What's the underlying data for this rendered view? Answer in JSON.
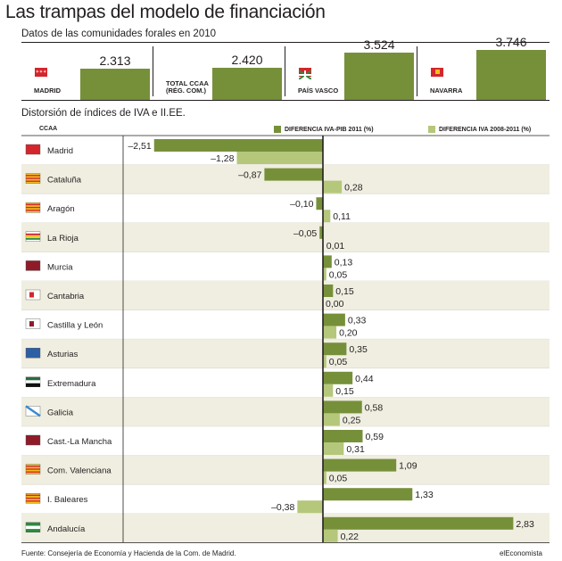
{
  "title": "Las trampas del modelo de financiación",
  "subtitle": "Datos de las comunidades forales en 2010",
  "top_panels": [
    {
      "label": "MADRID",
      "value": "2.313",
      "num": 2313,
      "flag": "madrid-flag"
    },
    {
      "label": "TOTAL CCAA (RÉG. COM.)",
      "label_lines": [
        "TOTAL CCAA",
        "(RÉG. COM.)"
      ],
      "value": "2.420",
      "num": 2420,
      "flag": ""
    },
    {
      "label": "PAÍS VASCO",
      "value": "3.524",
      "num": 3524,
      "flag": "pais-vasco-flag"
    },
    {
      "label": "NAVARRA",
      "value": "3.746",
      "num": 3746,
      "flag": "navarra-flag"
    }
  ],
  "section_title": "Distorsión de índices de IVA e II.EE.",
  "ccaa_header": "CCAA",
  "colors": {
    "dark": "#76903a",
    "light": "#b5c77a",
    "stripe": "#efeee0"
  },
  "chart_data": {
    "type": "bar",
    "orientation": "horizontal",
    "categories": [
      "Madrid",
      "Cataluña",
      "Aragón",
      "La Rioja",
      "Murcia",
      "Cantabria",
      "Castilla y León",
      "Asturias",
      "Extremadura",
      "Galicia",
      "Cast.-La Mancha",
      "Com. Valenciana",
      "I. Baleares",
      "Andalucía"
    ],
    "series": [
      {
        "name": "DIFERENCIA IVA-PIB 2011 (%)",
        "color": "#76903a",
        "values": [
          -2.51,
          -0.87,
          -0.1,
          -0.05,
          0.13,
          0.15,
          0.33,
          0.35,
          0.44,
          0.58,
          0.59,
          1.09,
          1.33,
          2.83
        ],
        "labels": [
          "–2,51",
          "–0,87",
          "–0,10",
          "–0,05",
          "0,13",
          "0,15",
          "0,33",
          "0,35",
          "0,44",
          "0,58",
          "0,59",
          "1,09",
          "1,33",
          "2,83"
        ]
      },
      {
        "name": "DIFERENCIA IVA 2008-2011 (%)",
        "color": "#b5c77a",
        "values": [
          -1.28,
          0.28,
          0.11,
          0.01,
          0.05,
          0.0,
          0.2,
          0.05,
          0.15,
          0.25,
          0.31,
          0.05,
          -0.38,
          0.22
        ],
        "labels": [
          "–1,28",
          "0,28",
          "0,11",
          "0,01",
          "0,05",
          "0,00",
          "0,20",
          "0,05",
          "0,15",
          "0,25",
          "0,31",
          "0,05",
          "–0,38",
          "0,22"
        ]
      }
    ],
    "xlim": [
      -3.1,
      3.0
    ],
    "legend_position": "top",
    "grid": false
  },
  "source": "Fuente: Consejería de Economía y Hacienda de la Com. de Madrid.",
  "brand": "elEconomista"
}
